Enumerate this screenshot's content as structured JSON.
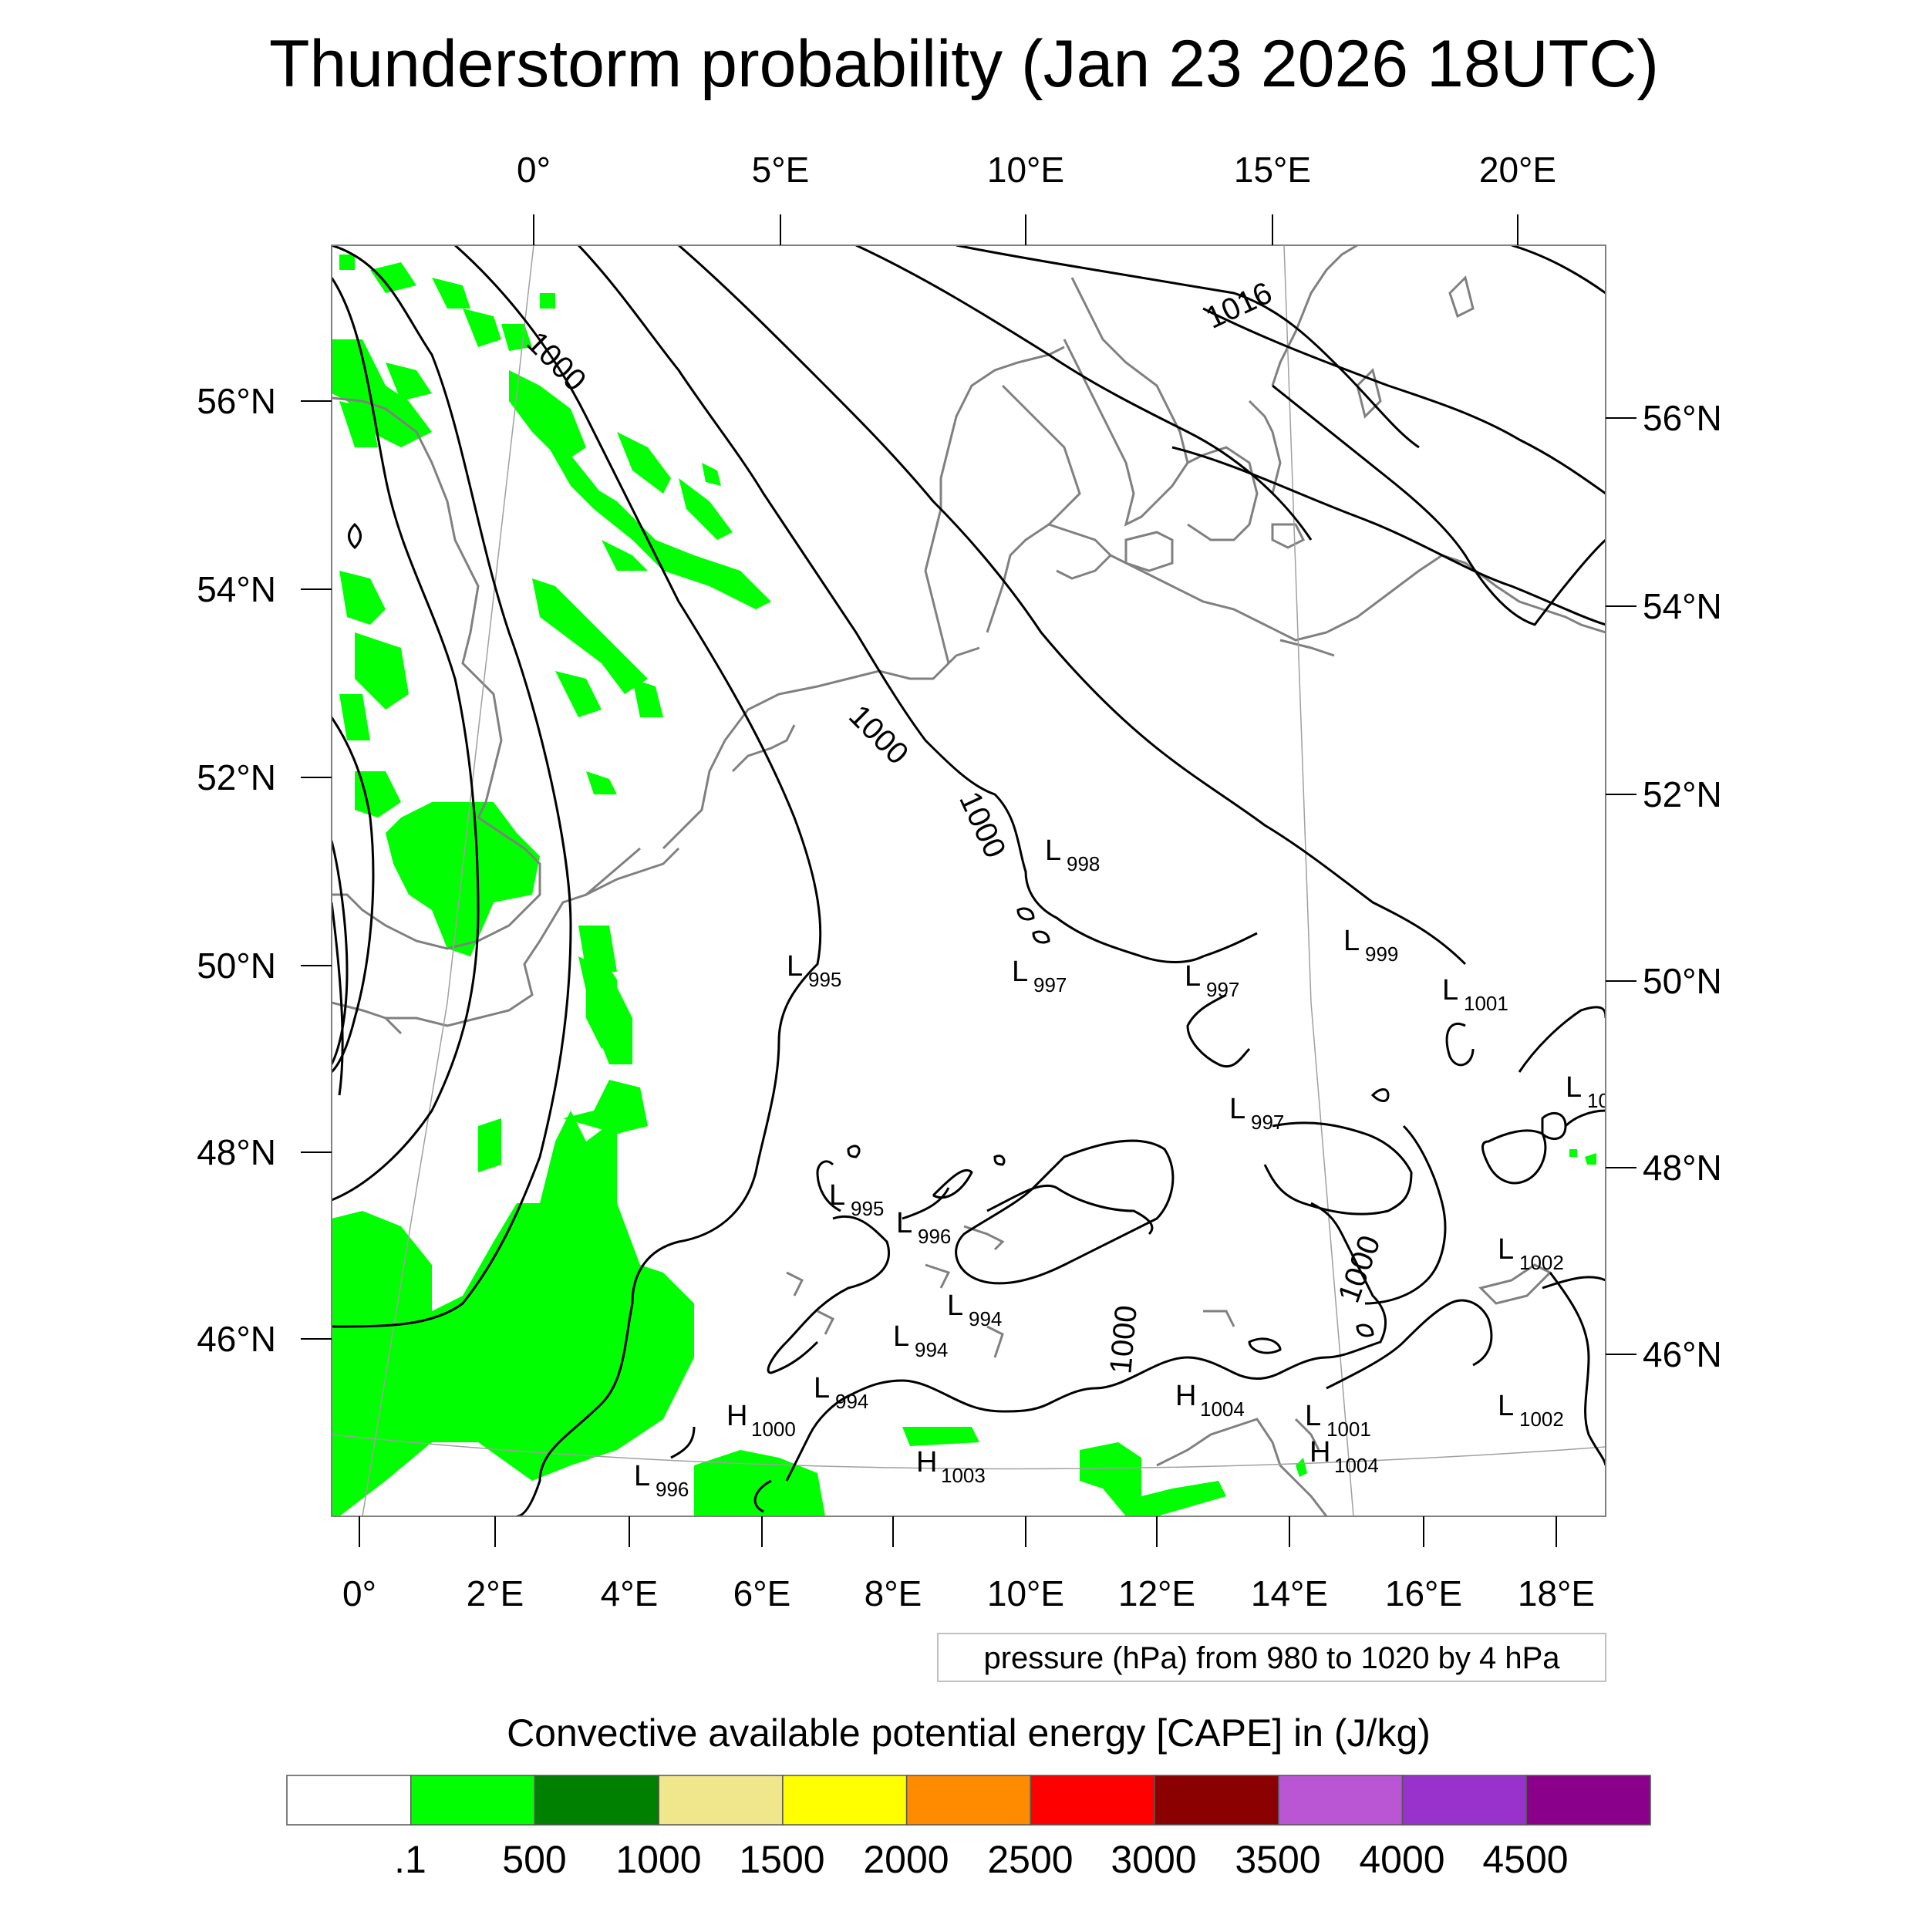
{
  "title": "Thunderstorm probability (Jan 23 2026 18UTC)",
  "top_lon_labels": [
    "0°",
    "5°E",
    "10°E",
    "15°E",
    "20°E"
  ],
  "bottom_lon_labels": [
    "0°",
    "2°E",
    "4°E",
    "6°E",
    "8°E",
    "10°E",
    "12°E",
    "14°E",
    "16°E",
    "18°E"
  ],
  "left_lat_labels": [
    "56°N",
    "54°N",
    "52°N",
    "50°N",
    "48°N",
    "46°N"
  ],
  "right_lat_labels": [
    "56°N",
    "54°N",
    "52°N",
    "50°N",
    "48°N",
    "46°N"
  ],
  "isobar_info": "pressure (hPa) from 980 to 1020 by 4 hPa",
  "colorbar_title": "Convective available potential energy [CAPE] in (J/kg)",
  "colorbar": {
    "colors": [
      "#ffffff",
      "#00ff00",
      "#008000",
      "#f0e68c",
      "#ffff00",
      "#ff8c00",
      "#ff0000",
      "#8b0000",
      "#ba55d3",
      "#9932cc",
      "#8b008b"
    ],
    "labels": [
      ".1",
      "500",
      "1000",
      "1500",
      "2000",
      "2500",
      "3000",
      "3500",
      "4000",
      "4500"
    ]
  },
  "contour_labels": [
    "1000",
    "1000",
    "1000",
    "1016",
    "1000",
    "1000"
  ],
  "pressure_centers": [
    {
      "type": "L",
      "value": "998"
    },
    {
      "type": "L",
      "value": "995"
    },
    {
      "type": "L",
      "value": "997"
    },
    {
      "type": "L",
      "value": "997"
    },
    {
      "type": "L",
      "value": "999"
    },
    {
      "type": "L",
      "value": "1001"
    },
    {
      "type": "L",
      "value": "10"
    },
    {
      "type": "L",
      "value": "997"
    },
    {
      "type": "L",
      "value": "995"
    },
    {
      "type": "L",
      "value": "996"
    },
    {
      "type": "L",
      "value": "994"
    },
    {
      "type": "L",
      "value": "994"
    },
    {
      "type": "L",
      "value": "994"
    },
    {
      "type": "H",
      "value": "1000"
    },
    {
      "type": "H",
      "value": "1003"
    },
    {
      "type": "L",
      "value": "996"
    },
    {
      "type": "H",
      "value": "1004"
    },
    {
      "type": "L",
      "value": "1001"
    },
    {
      "type": "H",
      "value": "1004"
    },
    {
      "type": "L",
      "value": "1002"
    },
    {
      "type": "L",
      "value": "1002"
    }
  ]
}
